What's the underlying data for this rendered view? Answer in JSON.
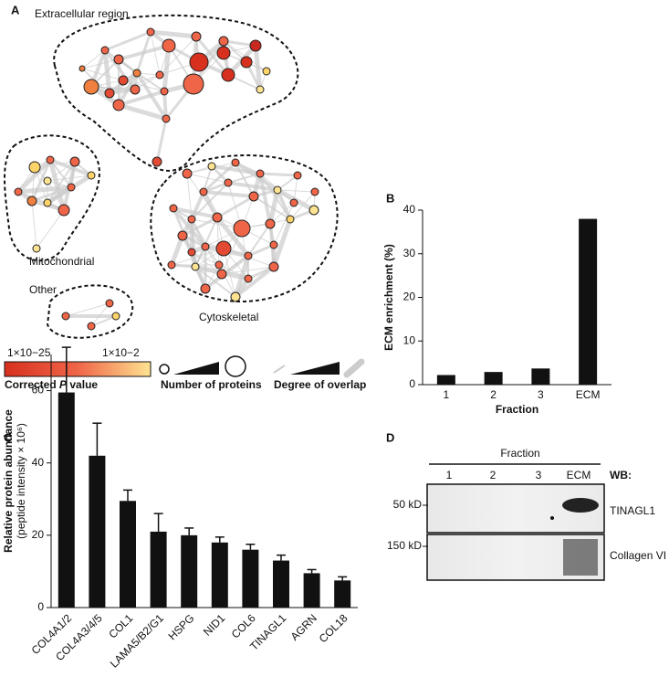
{
  "panel_a": {
    "label": "A",
    "clusters": [
      "Extracellular region",
      "Mitochondrial",
      "Other",
      "Cytoskeletal"
    ],
    "legend": {
      "p_low": "1×10−25",
      "p_high": "1×10−2",
      "p_title_1": "Corrected ",
      "p_title_2": "P",
      "p_title_3": " value",
      "size_title": "Number of proteins",
      "overlap_title": "Degree of overlap"
    }
  },
  "chart_data": [
    {
      "type": "bar",
      "panel": "B",
      "y_label": "ECM enrichment (%)",
      "x_label": "Fraction",
      "categories": [
        "1",
        "2",
        "3",
        "ECM"
      ],
      "values": [
        2.2,
        2.9,
        3.7,
        38
      ],
      "color": "#111111",
      "ylim": [
        0,
        40
      ],
      "yticks": [
        0,
        10,
        20,
        30,
        40
      ]
    },
    {
      "type": "errorbar",
      "panel": "C",
      "y_label": "Relative protein abundance",
      "y_label_2": "(peptide intensity × 10⁶)",
      "categories": [
        "COL4A1/2",
        "COL4A3/4/5",
        "COL1",
        "LAMA5/B2/G1",
        "HSPG",
        "NID1",
        "COL6",
        "TINAGL1",
        "AGRN",
        "COL18"
      ],
      "values": [
        59.5,
        42,
        29.5,
        21,
        20,
        18,
        16,
        13,
        9.5,
        7.5
      ],
      "errors": [
        12.5,
        9,
        3,
        5,
        2,
        1.5,
        1.5,
        1.5,
        1,
        1
      ],
      "color": "#111111",
      "ylim": [
        0,
        70
      ],
      "yticks": [
        0,
        20,
        40,
        60
      ]
    }
  ],
  "panel_d": {
    "label": "D",
    "header": "Fraction",
    "lanes": [
      "1",
      "2",
      "3",
      "ECM"
    ],
    "wb": "WB:",
    "rows": [
      {
        "marker": "50 kD",
        "antibody": "TINAGL1"
      },
      {
        "marker": "150 kD",
        "antibody": "Collagen VI"
      }
    ]
  }
}
